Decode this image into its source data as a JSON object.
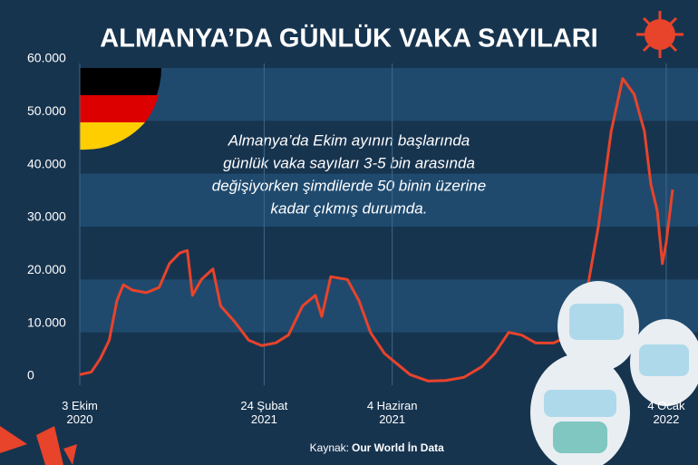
{
  "chart_data": {
    "type": "line",
    "title": "ALMANYA’DA GÜNLÜK VAKA SAYILARI",
    "annotation": [
      "Almanya’da Ekim ayının başlarında",
      "günlük vaka sayıları 3-5 bin arasında",
      "değişiyorken şimdilerde 50 binin üzerine",
      "kadar çıkmış durumda."
    ],
    "source_label": "Kaynak:",
    "source": "Our World İn Data",
    "x": [
      "2020-10-03",
      "2020-10-12",
      "2020-10-19",
      "2020-10-26",
      "2020-11-01",
      "2020-11-06",
      "2020-11-13",
      "2020-11-24",
      "2020-12-04",
      "2020-12-12",
      "2020-12-20",
      "2020-12-26",
      "2020-12-30",
      "2021-01-06",
      "2021-01-15",
      "2021-01-21",
      "2021-02-01",
      "2021-02-12",
      "2021-02-22",
      "2021-03-05",
      "2021-03-15",
      "2021-03-26",
      "2021-04-05",
      "2021-04-10",
      "2021-04-17",
      "2021-04-30",
      "2021-05-09",
      "2021-05-18",
      "2021-05-29",
      "2021-06-08",
      "2021-06-18",
      "2021-07-02",
      "2021-07-16",
      "2021-07-30",
      "2021-08-13",
      "2021-08-23",
      "2021-09-03",
      "2021-09-13",
      "2021-09-24",
      "2021-10-08",
      "2021-10-22",
      "2021-11-01",
      "2021-11-12",
      "2021-11-22",
      "2021-12-01",
      "2021-12-10",
      "2021-12-18",
      "2021-12-23",
      "2021-12-28",
      "2022-01-01",
      "2022-01-04",
      "2022-01-09"
    ],
    "series": [
      {
        "color": "#e8432b",
        "values": [
          2000,
          2500,
          5000,
          8500,
          16000,
          19000,
          18000,
          17500,
          18500,
          23000,
          25000,
          25500,
          17000,
          20000,
          22000,
          15000,
          12000,
          8500,
          7500,
          8000,
          9500,
          15000,
          17000,
          13000,
          20500,
          20000,
          16000,
          10000,
          6000,
          4000,
          2000,
          800,
          900,
          1500,
          3500,
          6000,
          10000,
          9500,
          8000,
          8000,
          9500,
          15000,
          30000,
          48000,
          58000,
          55000,
          48000,
          38000,
          33000,
          23000,
          27000,
          37000
        ]
      }
    ],
    "xlim": [
      "2020-10-03",
      "2022-01-09"
    ],
    "xticks": [
      {
        "value": "2020-10-03",
        "label": "3 Ekim 2020"
      },
      {
        "value": "2021-02-24",
        "label": "24 Şubat 2021"
      },
      {
        "value": "2021-06-04",
        "label": "4 Haziran 2021"
      },
      {
        "value": "2022-01-04",
        "label": "4 Ocak 2022"
      }
    ],
    "ylim": [
      0,
      60000
    ],
    "yticks": [
      0,
      {
        "value": 10000,
        "label": "10.000"
      },
      {
        "value": 20000,
        "label": "20.000"
      },
      {
        "value": 30000,
        "label": "30.000"
      },
      {
        "value": 40000,
        "label": "40.000"
      },
      {
        "value": 50000,
        "label": "50.000"
      },
      {
        "value": 60000,
        "label": "60.000"
      }
    ],
    "grid": "bands"
  }
}
